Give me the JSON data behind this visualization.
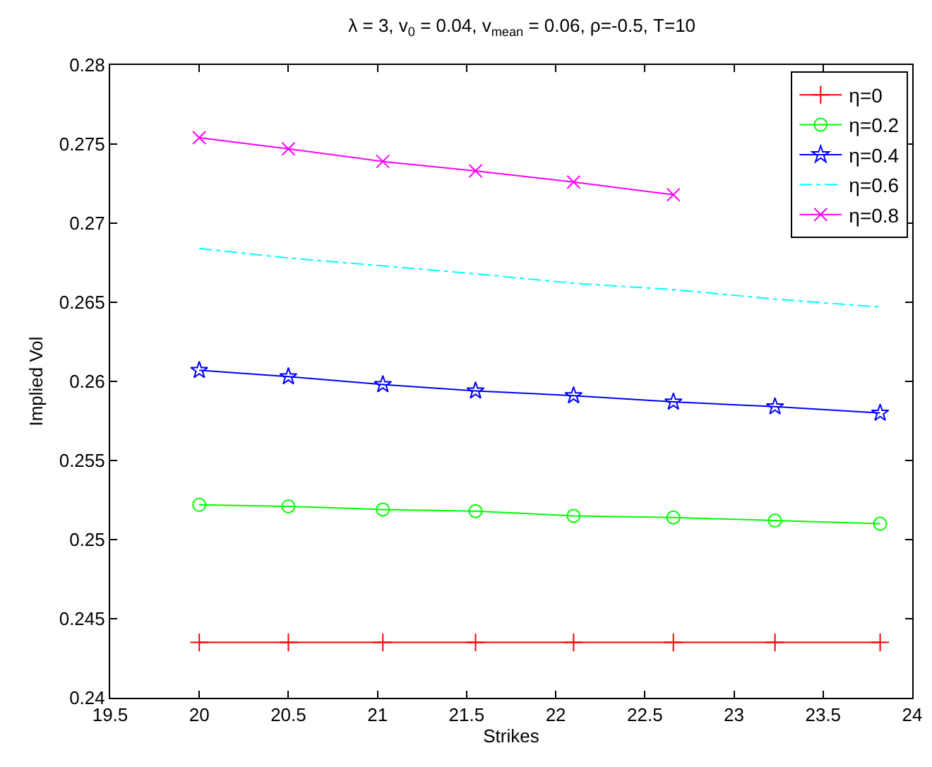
{
  "chart_data": {
    "type": "line",
    "title": "λ = 3, v$_{0}$ = 0.04, v$_{mean}$ = 0.06, ρ=-0.5, T=10",
    "xlabel": "Strikes",
    "ylabel": "Implied Vol",
    "x": [
      20,
      20.5,
      21.03,
      21.55,
      22.1,
      22.66,
      23.23,
      23.82
    ],
    "xlim": [
      19.5,
      24
    ],
    "xticks": [
      19.5,
      20,
      20.5,
      21,
      21.5,
      22,
      22.5,
      23,
      23.5,
      24
    ],
    "ylim": [
      0.24,
      0.28
    ],
    "yticks": [
      0.24,
      0.245,
      0.25,
      0.255,
      0.26,
      0.265,
      0.27,
      0.275,
      0.28
    ],
    "grid": false,
    "legend": "top right",
    "series": [
      {
        "name": "η=0",
        "color": "#ff0000",
        "marker": "cross",
        "line_style": "solid",
        "values": [
          0.2435,
          0.2435,
          0.2435,
          0.2435,
          0.2435,
          0.2435,
          0.2435,
          0.2435
        ]
      },
      {
        "name": "η=0.2",
        "color": "#00ff00",
        "marker": "circle",
        "line_style": "solid",
        "values": [
          0.2522,
          0.2521,
          0.2519,
          0.2518,
          0.2515,
          0.2514,
          0.2512,
          0.251
        ]
      },
      {
        "name": "η=0.4",
        "color": "#0000ff",
        "marker": "star",
        "line_style": "solid",
        "values": [
          0.2607,
          0.2603,
          0.2598,
          0.2594,
          0.2591,
          0.2587,
          0.2584,
          0.258
        ]
      },
      {
        "name": "η=0.6",
        "color": "#00ffff",
        "marker": "none",
        "line_style": "dashdot",
        "values": [
          0.2684,
          0.2678,
          0.2673,
          0.2668,
          0.2662,
          0.2658,
          0.2652,
          0.2647
        ]
      },
      {
        "name": "η=0.8",
        "color": "#ff00ff",
        "marker": "x",
        "line_style": "solid",
        "values": [
          0.2754,
          0.2747,
          0.2739,
          0.2733,
          0.2726,
          0.2718,
          null,
          null
        ]
      }
    ]
  }
}
